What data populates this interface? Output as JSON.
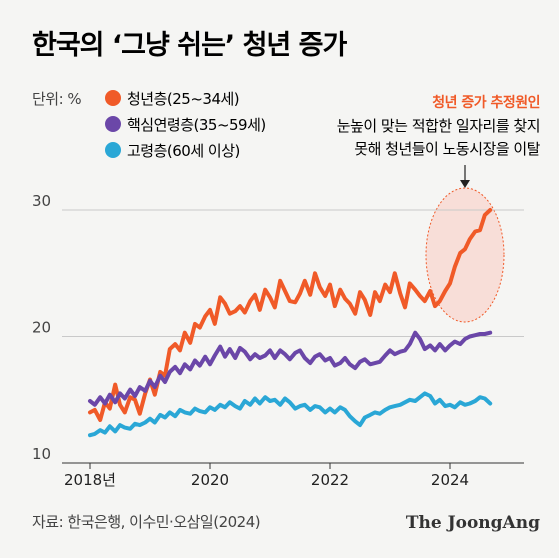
{
  "chart_data": {
    "type": "line",
    "title": "한국의 ‘그냥 쉬는’ 청년 증가",
    "unit_label": "단위: %",
    "x_ticks": [
      "2018년",
      "2020",
      "2022",
      "2024"
    ],
    "y_ticks": [
      "10",
      "20",
      "30"
    ],
    "xlim": [
      2018,
      2025
    ],
    "ylim": [
      10,
      30
    ],
    "annotation": {
      "title": "청년 증가 추정원인",
      "line1": "눈높이 맞는 적합한 일자리를 찾지",
      "line2": "못해 청년들이 노동시장을 이탈"
    },
    "source": "자료: 한국은행, 이수민·오삼일(2024)",
    "brand": "The JoongAng",
    "series": [
      {
        "name": "청년층(25~34세)",
        "color": "#f05a28",
        "x": [
          2018.0,
          2018.08,
          2018.17,
          2018.25,
          2018.33,
          2018.42,
          2018.5,
          2018.58,
          2018.67,
          2018.75,
          2018.83,
          2018.92,
          2019.0,
          2019.08,
          2019.17,
          2019.25,
          2019.33,
          2019.42,
          2019.5,
          2019.58,
          2019.67,
          2019.75,
          2019.83,
          2019.92,
          2020.0,
          2020.08,
          2020.17,
          2020.25,
          2020.33,
          2020.42,
          2020.5,
          2020.58,
          2020.67,
          2020.75,
          2020.83,
          2020.92,
          2021.0,
          2021.08,
          2021.17,
          2021.25,
          2021.33,
          2021.42,
          2021.5,
          2021.58,
          2021.67,
          2021.75,
          2021.83,
          2021.92,
          2022.0,
          2022.08,
          2022.17,
          2022.25,
          2022.33,
          2022.42,
          2022.5,
          2022.58,
          2022.67,
          2022.75,
          2022.83,
          2022.92,
          2023.0,
          2023.08,
          2023.17,
          2023.25,
          2023.33,
          2023.42,
          2023.5,
          2023.58,
          2023.67,
          2023.75,
          2023.83,
          2023.92,
          2024.0,
          2024.08,
          2024.17,
          2024.25,
          2024.33,
          2024.42,
          2024.5,
          2024.58,
          2024.67
        ],
        "values": [
          14.0,
          14.2,
          13.4,
          14.8,
          14.3,
          16.2,
          14.6,
          14.0,
          15.2,
          15.0,
          13.9,
          15.5,
          16.6,
          15.4,
          17.2,
          16.9,
          19.0,
          19.4,
          18.9,
          20.3,
          19.5,
          21.0,
          20.7,
          21.6,
          22.1,
          21.0,
          23.1,
          22.6,
          21.8,
          22.0,
          22.4,
          21.9,
          22.8,
          23.3,
          22.1,
          23.7,
          23.1,
          22.3,
          24.4,
          23.6,
          22.8,
          22.7,
          23.4,
          24.4,
          23.3,
          25.0,
          23.9,
          23.2,
          24.1,
          22.4,
          23.7,
          23.0,
          22.6,
          21.8,
          23.5,
          22.9,
          21.7,
          23.5,
          22.8,
          24.1,
          23.5,
          25.0,
          23.4,
          22.3,
          24.2,
          23.7,
          23.2,
          22.8,
          23.6,
          22.4,
          22.8,
          23.6,
          24.2,
          25.5,
          26.6,
          26.9,
          27.7,
          28.3,
          28.4,
          29.6,
          30.0
        ]
      },
      {
        "name": "핵심연령층(35~59세)",
        "color": "#6b47a8",
        "x": [
          2018.0,
          2018.08,
          2018.17,
          2018.25,
          2018.33,
          2018.42,
          2018.5,
          2018.58,
          2018.67,
          2018.75,
          2018.83,
          2018.92,
          2019.0,
          2019.08,
          2019.17,
          2019.25,
          2019.33,
          2019.42,
          2019.5,
          2019.58,
          2019.67,
          2019.75,
          2019.83,
          2019.92,
          2020.0,
          2020.08,
          2020.17,
          2020.25,
          2020.33,
          2020.42,
          2020.5,
          2020.58,
          2020.67,
          2020.75,
          2020.83,
          2020.92,
          2021.0,
          2021.08,
          2021.17,
          2021.25,
          2021.33,
          2021.42,
          2021.5,
          2021.58,
          2021.67,
          2021.75,
          2021.83,
          2021.92,
          2022.0,
          2022.08,
          2022.17,
          2022.25,
          2022.33,
          2022.42,
          2022.5,
          2022.58,
          2022.67,
          2022.75,
          2022.83,
          2022.92,
          2023.0,
          2023.08,
          2023.17,
          2023.25,
          2023.33,
          2023.42,
          2023.5,
          2023.58,
          2023.67,
          2023.75,
          2023.83,
          2023.92,
          2024.0,
          2024.08,
          2024.17,
          2024.25,
          2024.33,
          2024.42,
          2024.5,
          2024.58,
          2024.67
        ],
        "values": [
          14.9,
          14.6,
          15.2,
          14.7,
          15.4,
          14.8,
          15.5,
          15.1,
          15.8,
          15.3,
          16.0,
          15.7,
          16.5,
          16.0,
          16.9,
          16.4,
          17.2,
          17.6,
          17.1,
          17.8,
          17.4,
          18.1,
          17.7,
          18.4,
          17.8,
          18.5,
          19.2,
          18.4,
          19.0,
          18.3,
          19.1,
          18.8,
          18.2,
          18.6,
          18.3,
          18.5,
          18.9,
          18.3,
          18.9,
          18.6,
          18.2,
          18.7,
          18.9,
          18.3,
          17.9,
          18.4,
          18.6,
          18.1,
          18.3,
          17.7,
          17.9,
          18.3,
          17.8,
          17.5,
          18.0,
          18.2,
          17.8,
          17.9,
          18.0,
          18.5,
          18.9,
          18.6,
          18.8,
          18.9,
          19.4,
          20.3,
          19.8,
          19.0,
          19.3,
          18.9,
          19.4,
          18.9,
          19.3,
          19.6,
          19.4,
          19.8,
          20.0,
          20.1,
          20.2,
          20.2,
          20.3
        ]
      },
      {
        "name": "고령층(60세 이상)",
        "color": "#2aa7d6",
        "x": [
          2018.0,
          2018.08,
          2018.17,
          2018.25,
          2018.33,
          2018.42,
          2018.5,
          2018.58,
          2018.67,
          2018.75,
          2018.83,
          2018.92,
          2019.0,
          2019.08,
          2019.17,
          2019.25,
          2019.33,
          2019.42,
          2019.5,
          2019.58,
          2019.67,
          2019.75,
          2019.83,
          2019.92,
          2020.0,
          2020.08,
          2020.17,
          2020.25,
          2020.33,
          2020.42,
          2020.5,
          2020.58,
          2020.67,
          2020.75,
          2020.83,
          2020.92,
          2021.0,
          2021.08,
          2021.17,
          2021.25,
          2021.33,
          2021.42,
          2021.5,
          2021.58,
          2021.67,
          2021.75,
          2021.83,
          2021.92,
          2022.0,
          2022.08,
          2022.17,
          2022.25,
          2022.33,
          2022.42,
          2022.5,
          2022.58,
          2022.67,
          2022.75,
          2022.83,
          2022.92,
          2023.0,
          2023.08,
          2023.17,
          2023.25,
          2023.33,
          2023.42,
          2023.5,
          2023.58,
          2023.67,
          2023.75,
          2023.83,
          2023.92,
          2024.0,
          2024.08,
          2024.17,
          2024.25,
          2024.33,
          2024.42,
          2024.5,
          2024.58,
          2024.67
        ],
        "values": [
          12.2,
          12.3,
          12.6,
          12.4,
          12.9,
          12.5,
          13.0,
          12.8,
          12.7,
          13.1,
          13.0,
          13.2,
          13.5,
          13.2,
          13.8,
          13.6,
          14.0,
          13.7,
          14.2,
          14.0,
          13.9,
          14.3,
          14.1,
          14.0,
          14.4,
          14.2,
          14.6,
          14.4,
          14.8,
          14.5,
          14.3,
          14.9,
          14.6,
          15.1,
          14.7,
          15.2,
          14.9,
          15.0,
          14.6,
          15.1,
          14.8,
          14.3,
          14.5,
          14.6,
          14.2,
          14.5,
          14.4,
          14.0,
          14.3,
          14.0,
          14.4,
          14.2,
          13.7,
          13.3,
          13.0,
          13.6,
          13.8,
          14.0,
          13.9,
          14.2,
          14.4,
          14.5,
          14.6,
          14.8,
          15.0,
          14.9,
          15.2,
          15.5,
          15.3,
          14.7,
          15.0,
          14.5,
          14.6,
          14.4,
          14.8,
          14.6,
          14.7,
          14.9,
          15.2,
          15.1,
          14.7
        ]
      }
    ]
  }
}
